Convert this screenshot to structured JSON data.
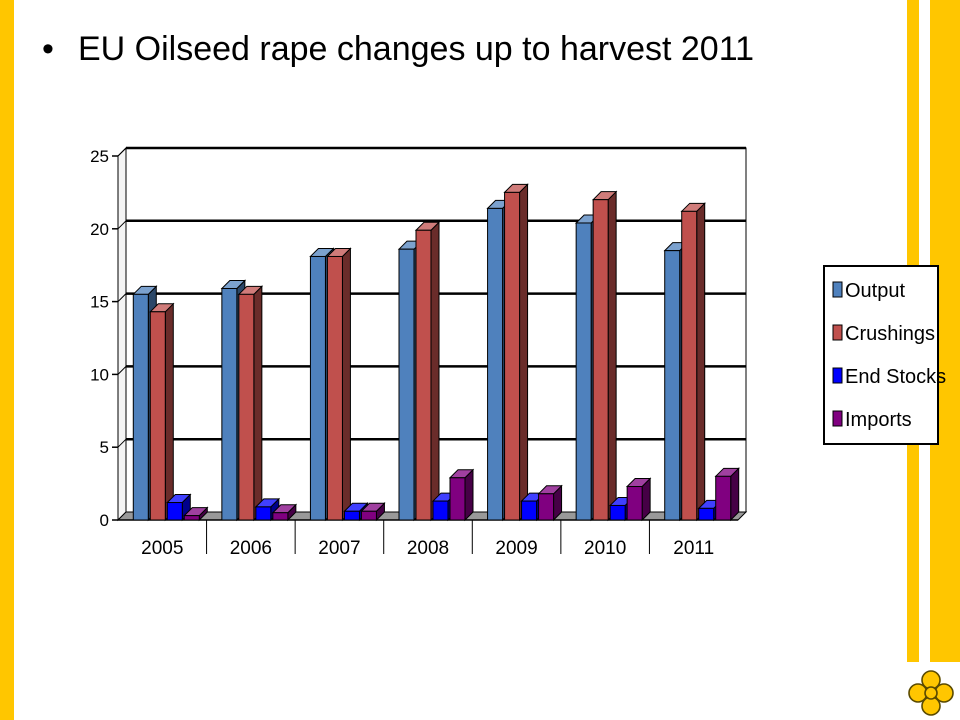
{
  "slide": {
    "bullet": "•",
    "title": "EU Oilseed rape changes up to harvest 2011"
  },
  "theme": {
    "accent": "#FFC600",
    "logo": "four-lobed-flower-icon"
  },
  "chart_data": {
    "type": "bar",
    "title": "",
    "xlabel": "",
    "ylabel": "",
    "categories": [
      "2005",
      "2006",
      "2007",
      "2008",
      "2009",
      "2010",
      "2011"
    ],
    "ylim": [
      0,
      25
    ],
    "yticks": [
      "0",
      "5",
      "10",
      "15",
      "20",
      "25"
    ],
    "grid": true,
    "legend_position": "right",
    "style": "3d-clustered-column",
    "series": [
      {
        "name": "Output",
        "color": "#4F81BD",
        "values": [
          15.5,
          15.9,
          18.1,
          18.6,
          21.4,
          20.4,
          18.5
        ]
      },
      {
        "name": "Crushings",
        "color": "#C0504D",
        "values": [
          14.3,
          15.5,
          18.1,
          19.9,
          22.5,
          22.0,
          21.2
        ]
      },
      {
        "name": "End Stocks",
        "color": "#0000FF",
        "values": [
          1.2,
          0.9,
          0.6,
          1.3,
          1.3,
          1.0,
          0.8
        ]
      },
      {
        "name": "Imports",
        "color": "#800080",
        "values": [
          0.3,
          0.5,
          0.6,
          2.9,
          1.8,
          2.3,
          3.0
        ]
      }
    ]
  }
}
